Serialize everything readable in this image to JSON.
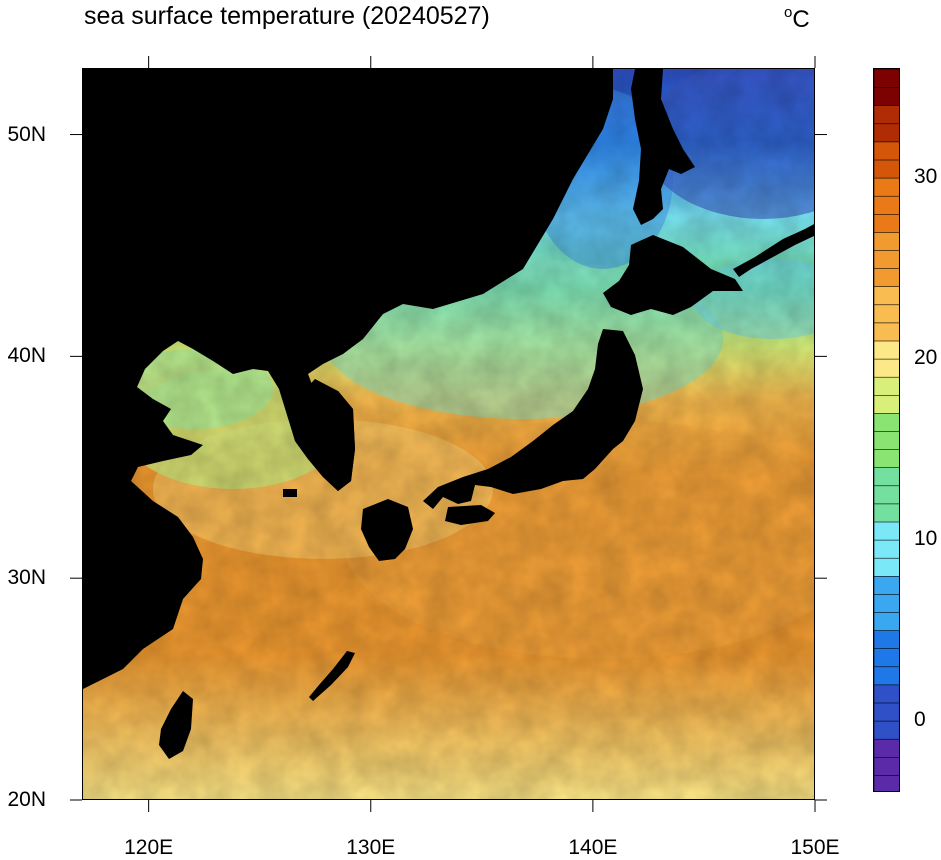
{
  "title": "sea surface temperature (20240527)",
  "units": {
    "symbol": "o",
    "letter": "C"
  },
  "map": {
    "type": "filled-contour-map",
    "projection": "cylindrical-equidistant",
    "lon_range": [
      117,
      150
    ],
    "lat_range": [
      20,
      53
    ],
    "land_color": "#000000",
    "x_ticks": [
      {
        "value": 120,
        "label": "120E"
      },
      {
        "value": 130,
        "label": "130E"
      },
      {
        "value": 140,
        "label": "140E"
      },
      {
        "value": 150,
        "label": "150E"
      }
    ],
    "y_ticks": [
      {
        "value": 20,
        "label": "20N"
      },
      {
        "value": 30,
        "label": "30N"
      },
      {
        "value": 40,
        "label": "40N"
      },
      {
        "value": 50,
        "label": "50N"
      }
    ]
  },
  "colorbar": {
    "min": -4,
    "max": 36,
    "step": 1,
    "labels": [
      {
        "value": 0,
        "label": "0"
      },
      {
        "value": 10,
        "label": "10"
      },
      {
        "value": 20,
        "label": "20"
      },
      {
        "value": 30,
        "label": "30"
      }
    ],
    "stops": [
      {
        "value": -4,
        "color": "#7a0f8e"
      },
      {
        "value": -1,
        "color": "#5a2aa8"
      },
      {
        "value": 2,
        "color": "#3050c8"
      },
      {
        "value": 5,
        "color": "#1f78e8"
      },
      {
        "value": 8,
        "color": "#3aa8f0"
      },
      {
        "value": 11,
        "color": "#7be8f8"
      },
      {
        "value": 14,
        "color": "#74e0a0"
      },
      {
        "value": 17,
        "color": "#8ae472"
      },
      {
        "value": 19,
        "color": "#d8f07a"
      },
      {
        "value": 21,
        "color": "#fde888"
      },
      {
        "value": 24,
        "color": "#f8bc50"
      },
      {
        "value": 27,
        "color": "#f09a30"
      },
      {
        "value": 30,
        "color": "#ea7a18"
      },
      {
        "value": 32,
        "color": "#d45608"
      },
      {
        "value": 34,
        "color": "#b02c04"
      },
      {
        "value": 36,
        "color": "#7c0202"
      }
    ]
  }
}
